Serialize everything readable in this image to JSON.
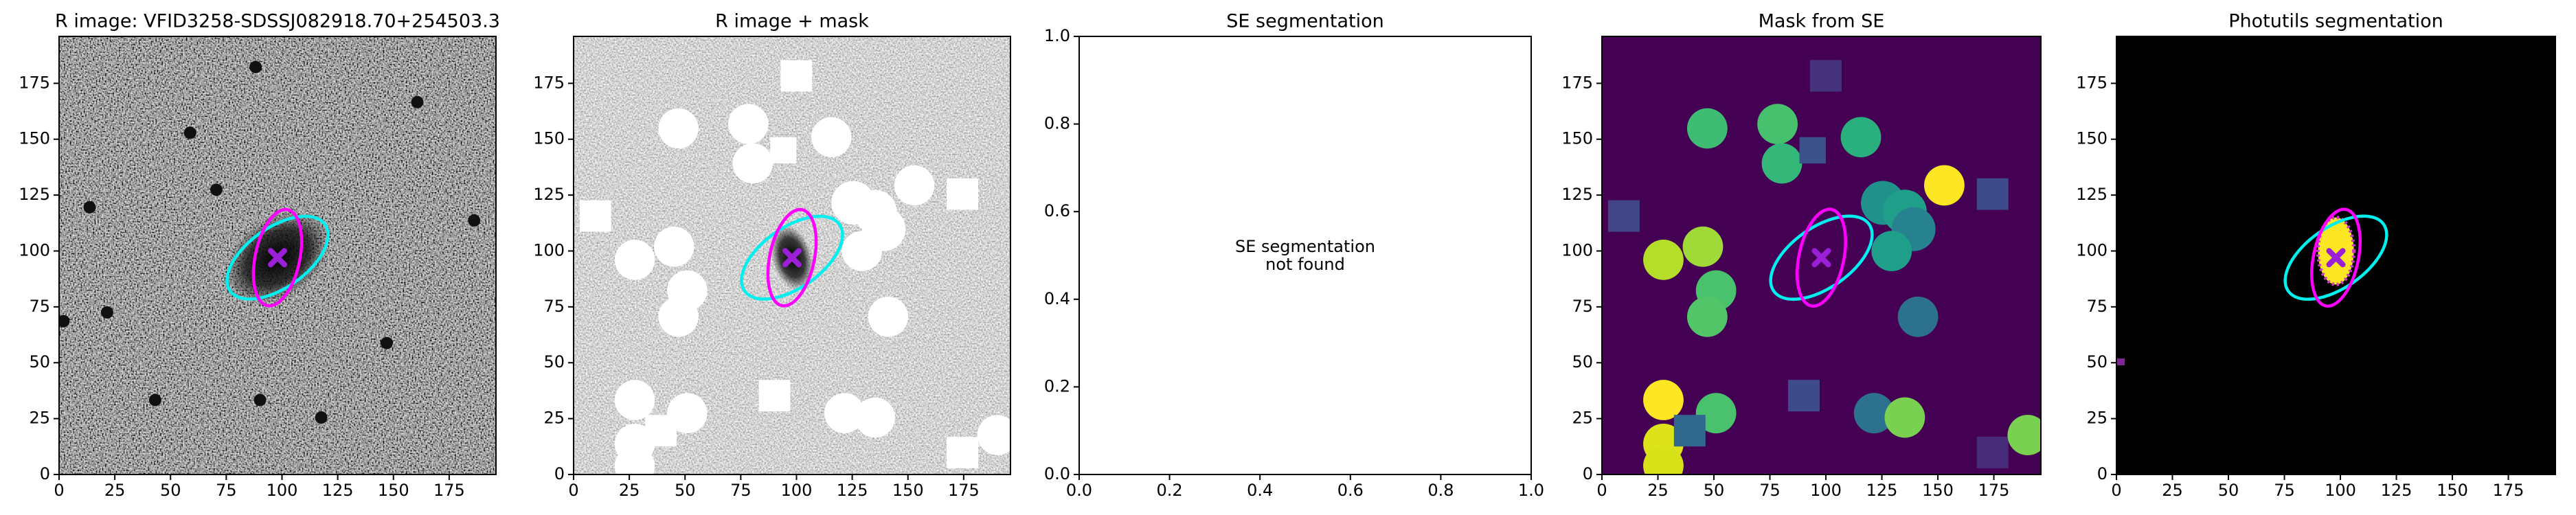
{
  "chart_data": [
    {
      "type": "image",
      "title": "R image: VFID3258-SDSSJ082918.70+254503.3",
      "xlim": [
        0,
        196
      ],
      "ylim": [
        0,
        196
      ],
      "xticks": [
        0,
        25,
        50,
        75,
        100,
        125,
        150,
        175
      ],
      "yticks": [
        0,
        25,
        50,
        75,
        100,
        125,
        150,
        175
      ],
      "series": [
        {
          "x": [
            98
          ],
          "y": [
            97
          ],
          "color": "#9a1fd6"
        }
      ]
    },
    {
      "type": "image",
      "title": "R image + mask",
      "xlim": [
        0,
        196
      ],
      "ylim": [
        0,
        196
      ],
      "xticks": [
        0,
        25,
        50,
        75,
        100,
        125,
        150,
        175
      ],
      "yticks": [
        0,
        25,
        50,
        75,
        100,
        125,
        150,
        175
      ],
      "series": [
        {
          "x": [
            98
          ],
          "y": [
            97
          ],
          "color": "#9a1fd6"
        }
      ]
    },
    {
      "type": "empty",
      "title": "SE segmentation",
      "xlim": [
        0,
        1
      ],
      "ylim": [
        0,
        1
      ],
      "xticks": [
        {
          "value": 0,
          "label": "0.0"
        },
        {
          "value": 0.2,
          "label": "0.2"
        },
        {
          "value": 0.4,
          "label": "0.4"
        },
        {
          "value": 0.6,
          "label": "0.6"
        },
        {
          "value": 0.8,
          "label": "0.8"
        },
        {
          "value": 1,
          "label": "1.0"
        }
      ],
      "yticks": [
        {
          "value": 0,
          "label": "0.0"
        },
        {
          "value": 0.2,
          "label": "0.2"
        },
        {
          "value": 0.4,
          "label": "0.4"
        },
        {
          "value": 0.6,
          "label": "0.6"
        },
        {
          "value": 0.8,
          "label": "0.8"
        },
        {
          "value": 1,
          "label": "1.0"
        }
      ],
      "annotation": [
        "SE segmentation",
        "not found"
      ]
    },
    {
      "type": "image",
      "title": "Mask from SE",
      "xlim": [
        0,
        196
      ],
      "ylim": [
        0,
        196
      ],
      "xticks": [
        0,
        25,
        50,
        75,
        100,
        125,
        150,
        175
      ],
      "yticks": [
        0,
        25,
        50,
        75,
        100,
        125,
        150,
        175
      ],
      "series": [
        {
          "x": [
            98
          ],
          "y": [
            97
          ],
          "color": "#9a1fd6"
        }
      ]
    },
    {
      "type": "image",
      "title": "Photutils segmentation",
      "xlim": [
        0,
        196
      ],
      "ylim": [
        0,
        196
      ],
      "xticks": [
        0,
        25,
        50,
        75,
        100,
        125,
        150,
        175
      ],
      "yticks": [
        0,
        25,
        50,
        75,
        100,
        125,
        150,
        175
      ],
      "series": [
        {
          "x": [
            98
          ],
          "y": [
            97
          ],
          "color": "#9a1fd6"
        }
      ]
    }
  ]
}
